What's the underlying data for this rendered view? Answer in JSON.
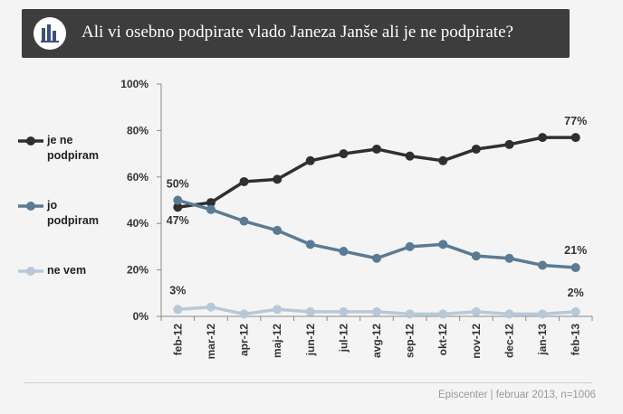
{
  "header": {
    "title": "Ali vi osebno podpirate vlado Janeza Janše ali je ne podpirate?",
    "icon": "bar-chart-icon"
  },
  "footer": {
    "source": "Episcenter | februar 2013, n=1006"
  },
  "chart_data": {
    "type": "line",
    "title": "Ali vi osebno podpirate vlado Janeza Janše ali je ne podpirate?",
    "xlabel": "",
    "ylabel": "",
    "ylim": [
      0,
      100
    ],
    "y_ticks": [
      "0%",
      "20%",
      "40%",
      "60%",
      "80%",
      "100%"
    ],
    "grid": false,
    "legend_position": "left",
    "categories": [
      "feb-12",
      "mar-12",
      "apr-12",
      "maj-12",
      "jun-12",
      "jul-12",
      "avg-12",
      "sep-12",
      "okt-12",
      "nov-12",
      "dec-12",
      "jan-13",
      "feb-13"
    ],
    "series": [
      {
        "name": "je ne podpiram",
        "legend_lines": [
          "je ne",
          "podpiram"
        ],
        "color": "#2f2f2f",
        "values": [
          47,
          49,
          58,
          59,
          67,
          70,
          72,
          69,
          67,
          72,
          74,
          77,
          77
        ],
        "labels": [
          "47%",
          "",
          "",
          "",
          "",
          "",
          "",
          "",
          "",
          "",
          "",
          "",
          "77%"
        ]
      },
      {
        "name": "jo podpiram",
        "legend_lines": [
          "jo",
          "podpiram"
        ],
        "color": "#5b7b93",
        "values": [
          50,
          46,
          41,
          37,
          31,
          28,
          25,
          30,
          31,
          26,
          25,
          22,
          21
        ],
        "labels": [
          "50%",
          "",
          "",
          "",
          "",
          "",
          "",
          "",
          "",
          "",
          "",
          "",
          "21%"
        ]
      },
      {
        "name": "ne vem",
        "legend_lines": [
          "ne vem"
        ],
        "color": "#b7c9d8",
        "values": [
          3,
          4,
          1,
          3,
          2,
          2,
          2,
          1,
          1,
          2,
          1,
          1,
          2
        ],
        "labels": [
          "3%",
          "",
          "",
          "",
          "",
          "",
          "",
          "",
          "",
          "",
          "",
          "",
          "2%"
        ]
      }
    ]
  }
}
